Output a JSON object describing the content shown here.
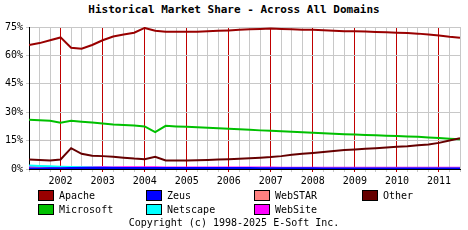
{
  "chart_data": {
    "type": "line",
    "title": "Historical Market Share - Across All Domains",
    "annotations": [
      "Copyright (c) 1998-2025 E-Soft Inc."
    ],
    "categories": [
      null,
      null,
      null,
      "2002",
      null,
      null,
      null,
      "2003",
      null,
      null,
      null,
      "2004",
      null,
      null,
      null,
      "2005",
      null,
      null,
      null,
      "2006",
      null,
      null,
      null,
      "2007",
      null,
      null,
      null,
      "2008",
      null,
      null,
      null,
      "2009",
      null,
      null,
      null,
      "2010",
      null,
      null,
      null,
      "2011",
      null,
      null
    ],
    "series": [
      {
        "name": "Apache",
        "color": "#990000",
        "values": [
          65.5,
          66.5,
          68,
          69.5,
          64,
          63.5,
          65.5,
          68,
          70,
          71,
          72,
          74.5,
          73,
          72.5,
          72.5,
          72.5,
          72.5,
          72.8,
          73,
          73.2,
          73.5,
          73.8,
          74,
          74.2,
          74,
          73.8,
          73.6,
          73.5,
          73.3,
          73,
          72.8,
          72.8,
          72.6,
          72.4,
          72.2,
          72,
          71.8,
          71.5,
          71,
          70.5,
          69.8,
          69.3
        ]
      },
      {
        "name": "Zeus",
        "color": "#0000ff",
        "values": [
          0.3,
          0.3,
          0.4,
          0.4,
          0.5,
          0.5,
          0.5,
          0.5,
          0.5,
          0.5,
          0.5,
          0.5,
          0.5,
          0.5,
          0.5,
          0.5,
          0.5,
          0.5,
          0.5,
          0.5,
          0.5,
          0.5,
          0.4,
          0.4,
          0.4,
          0.4,
          0.4,
          0.4,
          0.3,
          0.3,
          0.3,
          0.3,
          0.3,
          0.3,
          0.3,
          0.3,
          0.3,
          0.3,
          0.3,
          0.3,
          0.3,
          0.3
        ]
      },
      {
        "name": "WebSTAR",
        "color": "#ff8080",
        "values": [
          0.3,
          0.3,
          0.3,
          0.3,
          0.3,
          0.2,
          0.2,
          0.2,
          0.2,
          0.2,
          0.2,
          0.2,
          0.2,
          0.2,
          0.2,
          0.1,
          0.1,
          0.1,
          0.1,
          0.1,
          0.1,
          0.1,
          0.1,
          0.1,
          0.1,
          0.1,
          0.1,
          0.1,
          0.1,
          0.1,
          0.1,
          0.1,
          0.1,
          0.1,
          0.1,
          0.1,
          0.1,
          0.1,
          0.1,
          0.1,
          0.1,
          0.1
        ]
      },
      {
        "name": "Other",
        "color": "#660000",
        "values": [
          5,
          4.8,
          4.5,
          5,
          11,
          8,
          7,
          6.8,
          6.5,
          6,
          5.5,
          5.2,
          6.5,
          4.5,
          4.5,
          4.5,
          4.6,
          4.8,
          5,
          5.2,
          5.4,
          5.7,
          6,
          6.3,
          6.8,
          7.5,
          8,
          8.5,
          9,
          9.5,
          10,
          10.3,
          10.7,
          11,
          11.3,
          11.7,
          12,
          12.5,
          13,
          13.8,
          15,
          16.3
        ]
      },
      {
        "name": "Microsoft",
        "color": "#00c000",
        "values": [
          26,
          25.8,
          25.5,
          24.5,
          25.5,
          25,
          24.5,
          24,
          23.5,
          23.2,
          23,
          22.5,
          19.5,
          22.8,
          22.5,
          22.3,
          22,
          21.8,
          21.5,
          21.2,
          21,
          20.7,
          20.4,
          20.2,
          20,
          19.7,
          19.4,
          19.2,
          18.9,
          18.6,
          18.4,
          18.2,
          18,
          17.8,
          17.6,
          17.4,
          17.2,
          17,
          16.7,
          16.4,
          16,
          15.7
        ]
      },
      {
        "name": "Netscape",
        "color": "#00ffff",
        "values": [
          1.8,
          1.6,
          1.4,
          1.2,
          1,
          0.9,
          0.8,
          0.7,
          0.6,
          0.5,
          0.5,
          0.4,
          0.4,
          0.3,
          0.3,
          0.3,
          0.2,
          0.2,
          0.2,
          0.2,
          0.2,
          0.2,
          0.2,
          0.1,
          0.1,
          0.1,
          0.1,
          0.1,
          0.1,
          0.1,
          0.1,
          0.1,
          0.1,
          0.1,
          0.1,
          0.1,
          0.1,
          0.1,
          0.1,
          0.1,
          0.1,
          0.1
        ]
      },
      {
        "name": "WebSite",
        "color": "#ff00ff",
        "values": [
          1.2,
          1.2,
          1.1,
          1.1,
          1,
          1,
          1,
          1,
          0.9,
          0.9,
          0.9,
          0.9,
          0.9,
          0.8,
          0.8,
          0.8,
          0.8,
          0.8,
          0.8,
          0.8,
          0.8,
          0.8,
          0.8,
          0.8,
          0.7,
          0.7,
          0.7,
          0.7,
          0.7,
          0.7,
          0.7,
          0.7,
          0.7,
          0.7,
          0.6,
          0.6,
          0.6,
          0.6,
          0.6,
          0.6,
          0.6,
          0.6
        ]
      }
    ],
    "ylim": [
      0,
      75
    ],
    "yticks": [
      {
        "value": 0,
        "label": "0%"
      },
      {
        "value": 15,
        "label": "15%"
      },
      {
        "value": 30,
        "label": "30%"
      },
      {
        "value": 45,
        "label": "45%"
      },
      {
        "value": 60,
        "label": "60%"
      },
      {
        "value": 75,
        "label": "75%"
      }
    ],
    "grid": true,
    "legend": "bottom"
  }
}
